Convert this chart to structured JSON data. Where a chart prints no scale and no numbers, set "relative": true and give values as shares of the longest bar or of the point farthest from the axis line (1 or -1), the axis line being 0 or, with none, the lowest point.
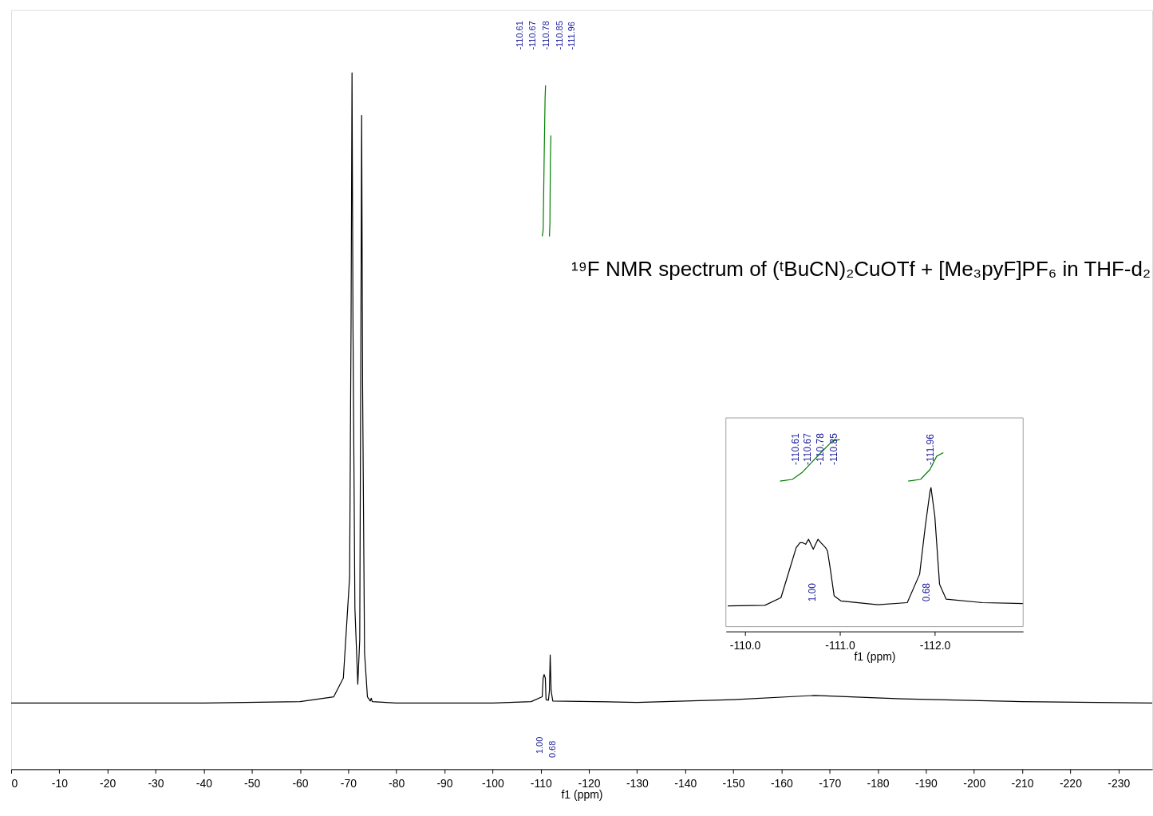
{
  "chart_data": [
    {
      "type": "line",
      "title": "¹⁹F NMR spectrum of (ᵗBuCN)₂CuOTf  +  [Me₃pyF]PF₆ in THF-d₂",
      "xlabel": "f1 (ppm)",
      "relative": true,
      "grid": false,
      "xlim": [
        0,
        -237
      ],
      "xticks": [
        0,
        -10,
        -20,
        -30,
        -40,
        -50,
        -60,
        -70,
        -80,
        -90,
        -100,
        -110,
        -120,
        -130,
        -140,
        -150,
        -160,
        -170,
        -180,
        -190,
        -200,
        -210,
        -220,
        -230
      ],
      "series": [
        {
          "color": "#000000",
          "x": [
            0,
            -20,
            -40,
            -60,
            -67,
            -69,
            -70.3,
            -70.6,
            -70.8,
            -71.0,
            -71.4,
            -72.0,
            -72.4,
            -72.6,
            -72.8,
            -73.0,
            -73.4,
            -74.0,
            -74.6,
            -74.8,
            -75.0,
            -80,
            -100,
            -108,
            -110.3,
            -110.5,
            -110.7,
            -110.95,
            -111.1,
            -111.6,
            -111.8,
            -111.96,
            -112.15,
            -112.5,
            -130,
            -150,
            -167,
            -185,
            -210,
            -237
          ],
          "values": [
            0.095,
            0.095,
            0.095,
            0.097,
            0.104,
            0.131,
            0.276,
            0.638,
            1.0,
            0.638,
            0.231,
            0.122,
            0.186,
            0.548,
            0.939,
            0.548,
            0.167,
            0.104,
            0.098,
            0.102,
            0.097,
            0.095,
            0.095,
            0.097,
            0.104,
            0.131,
            0.136,
            0.131,
            0.1,
            0.099,
            0.113,
            0.164,
            0.113,
            0.098,
            0.096,
            0.1,
            0.106,
            0.101,
            0.097,
            0.095
          ]
        },
        {
          "color": "#008000",
          "x": [
            -110.3,
            -110.5,
            -110.7,
            -110.9,
            -111.0
          ],
          "values": [
            0.765,
            0.774,
            0.873,
            0.964,
            0.982
          ]
        },
        {
          "color": "#008000",
          "x": [
            -111.8,
            -111.9,
            -112.0,
            -112.1
          ],
          "values": [
            0.765,
            0.783,
            0.873,
            0.91
          ]
        }
      ],
      "annotations": [
        "-110.61",
        "-110.67",
        "-110.78",
        "-110.85",
        "-111.96",
        "1.00",
        "0.68"
      ]
    },
    {
      "type": "line",
      "xlabel": "f1 (ppm)",
      "relative": true,
      "grid": false,
      "xlim": [
        -109.8,
        -112.93
      ],
      "xticks": [
        {
          "value": -110,
          "label": "-110.0"
        },
        {
          "value": -111,
          "label": "-111.0"
        },
        {
          "value": -112,
          "label": "-112.0"
        }
      ],
      "series": [
        {
          "color": "#000000",
          "x": [
            -109.82,
            -110.21,
            -110.38,
            -110.45,
            -110.54,
            -110.58,
            -110.61,
            -110.64,
            -110.67,
            -110.72,
            -110.77,
            -110.8,
            -110.85,
            -110.87,
            -110.9,
            -110.94,
            -111.01,
            -111.4,
            -111.71,
            -111.84,
            -111.9,
            -111.95,
            -111.96,
            -112.0,
            -112.05,
            -112.12,
            -112.5,
            -112.93
          ],
          "values": [
            0.133,
            0.136,
            0.176,
            0.289,
            0.436,
            0.462,
            0.462,
            0.454,
            0.48,
            0.428,
            0.48,
            0.462,
            0.436,
            0.419,
            0.324,
            0.185,
            0.159,
            0.139,
            0.15,
            0.298,
            0.549,
            0.731,
            0.749,
            0.601,
            0.246,
            0.168,
            0.15,
            0.145
          ]
        },
        {
          "color": "#008000",
          "x": [
            -110.37,
            -110.5,
            -110.6,
            -110.8,
            -110.92,
            -111.0
          ],
          "values": [
            0.783,
            0.792,
            0.827,
            0.931,
            0.991,
            1.0
          ]
        },
        {
          "color": "#008000",
          "x": [
            -111.72,
            -111.85,
            -111.95,
            -112.02,
            -112.09
          ],
          "values": [
            0.783,
            0.792,
            0.844,
            0.913,
            0.931
          ]
        }
      ],
      "annotations": [
        "-110.61",
        "-110.67",
        "-110.78",
        "-110.85",
        "-111.96",
        "1.00",
        "0.68"
      ]
    }
  ]
}
